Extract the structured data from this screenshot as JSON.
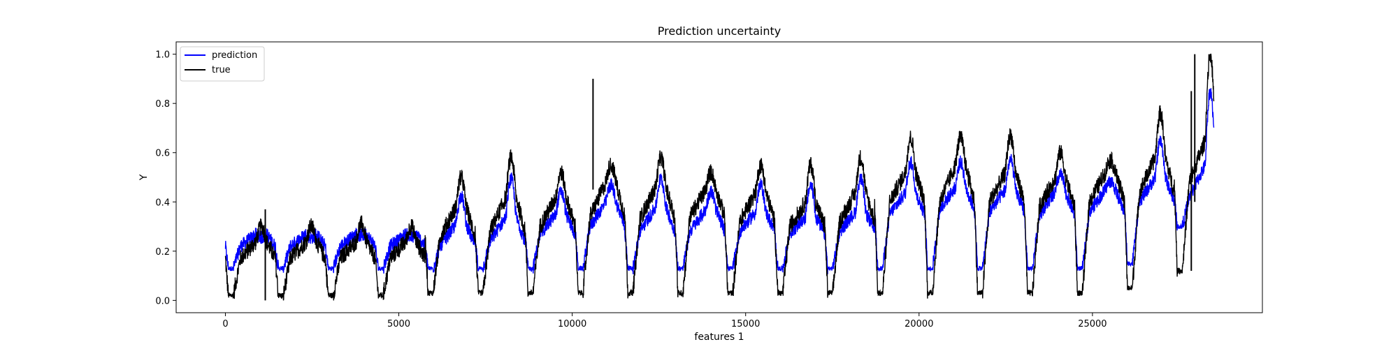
{
  "chart_data": {
    "type": "line",
    "title": "Prediction uncertainty",
    "xlabel": "features 1",
    "ylabel": "Y",
    "xlim": [
      -1420,
      29900
    ],
    "ylim": [
      -0.05,
      1.05
    ],
    "xticks": [
      0,
      5000,
      10000,
      15000,
      20000,
      25000
    ],
    "xtick_labels": [
      "0",
      "5000",
      "10000",
      "15000",
      "20000",
      "25000"
    ],
    "yticks": [
      0.0,
      0.2,
      0.4,
      0.6,
      0.8,
      1.0
    ],
    "ytick_labels": [
      "0.0",
      "0.2",
      "0.4",
      "0.6",
      "0.8",
      "1.0"
    ],
    "grid": false,
    "legend": {
      "placement": "top-left",
      "entries": [
        "prediction",
        "true"
      ]
    },
    "colors": {
      "prediction": "#0000ff",
      "true": "#000000"
    },
    "x_range": [
      0,
      28500
    ],
    "period": 1440,
    "cycles": [
      {
        "start": 0,
        "plateau_true": [
          0.17,
          0.24
        ],
        "plateau_pred": [
          0.22,
          0.27
        ],
        "peak_true": 0.3,
        "min_true": 0.02,
        "min_pred": 0.13
      },
      {
        "start": 1440,
        "plateau_true": [
          0.17,
          0.24
        ],
        "plateau_pred": [
          0.22,
          0.27
        ],
        "peak_true": 0.3,
        "min_true": 0.02,
        "min_pred": 0.13
      },
      {
        "start": 2880,
        "plateau_true": [
          0.17,
          0.24
        ],
        "plateau_pred": [
          0.22,
          0.27
        ],
        "peak_true": 0.31,
        "min_true": 0.02,
        "min_pred": 0.13
      },
      {
        "start": 4320,
        "plateau_true": [
          0.17,
          0.24
        ],
        "plateau_pred": [
          0.22,
          0.27
        ],
        "peak_true": 0.3,
        "min_true": 0.02,
        "min_pred": 0.13
      },
      {
        "start": 5760,
        "plateau_true": [
          0.26,
          0.38
        ],
        "plateau_pred": [
          0.22,
          0.31
        ],
        "peak_true": 0.5,
        "min_true": 0.03,
        "min_pred": 0.13
      },
      {
        "start": 7200,
        "plateau_true": [
          0.28,
          0.42
        ],
        "plateau_pred": [
          0.24,
          0.34
        ],
        "peak_true": 0.58,
        "min_true": 0.03,
        "min_pred": 0.13
      },
      {
        "start": 8640,
        "plateau_true": [
          0.3,
          0.42
        ],
        "plateau_pred": [
          0.27,
          0.35
        ],
        "peak_true": 0.52,
        "min_true": 0.03,
        "min_pred": 0.13
      },
      {
        "start": 10080,
        "plateau_true": [
          0.34,
          0.48
        ],
        "plateau_pred": [
          0.3,
          0.4
        ],
        "peak_true": 0.55,
        "min_true": 0.03,
        "min_pred": 0.13
      },
      {
        "start": 11520,
        "plateau_true": [
          0.33,
          0.46
        ],
        "plateau_pred": [
          0.28,
          0.38
        ],
        "peak_true": 0.58,
        "min_true": 0.03,
        "min_pred": 0.13
      },
      {
        "start": 12960,
        "plateau_true": [
          0.34,
          0.45
        ],
        "plateau_pred": [
          0.28,
          0.37
        ],
        "peak_true": 0.52,
        "min_true": 0.03,
        "min_pred": 0.13
      },
      {
        "start": 14400,
        "plateau_true": [
          0.32,
          0.44
        ],
        "plateau_pred": [
          0.28,
          0.36
        ],
        "peak_true": 0.55,
        "min_true": 0.03,
        "min_pred": 0.13
      },
      {
        "start": 15840,
        "plateau_true": [
          0.3,
          0.4
        ],
        "plateau_pred": [
          0.27,
          0.34
        ],
        "peak_true": 0.55,
        "min_true": 0.03,
        "min_pred": 0.13
      },
      {
        "start": 17280,
        "plateau_true": [
          0.32,
          0.44
        ],
        "plateau_pred": [
          0.28,
          0.36
        ],
        "peak_true": 0.58,
        "min_true": 0.03,
        "min_pred": 0.13
      },
      {
        "start": 18720,
        "plateau_true": [
          0.4,
          0.52
        ],
        "plateau_pred": [
          0.35,
          0.44
        ],
        "peak_true": 0.66,
        "min_true": 0.03,
        "min_pred": 0.13
      },
      {
        "start": 20160,
        "plateau_true": [
          0.4,
          0.55
        ],
        "plateau_pred": [
          0.37,
          0.46
        ],
        "peak_true": 0.66,
        "min_true": 0.03,
        "min_pred": 0.13
      },
      {
        "start": 21600,
        "plateau_true": [
          0.4,
          0.52
        ],
        "plateau_pred": [
          0.36,
          0.45
        ],
        "peak_true": 0.67,
        "min_true": 0.03,
        "min_pred": 0.13
      },
      {
        "start": 23040,
        "plateau_true": [
          0.38,
          0.5
        ],
        "plateau_pred": [
          0.35,
          0.44
        ],
        "peak_true": 0.6,
        "min_true": 0.03,
        "min_pred": 0.13
      },
      {
        "start": 24480,
        "plateau_true": [
          0.4,
          0.52
        ],
        "plateau_pred": [
          0.36,
          0.45
        ],
        "peak_true": 0.57,
        "min_true": 0.03,
        "min_pred": 0.13
      },
      {
        "start": 25920,
        "plateau_true": [
          0.44,
          0.58
        ],
        "plateau_pred": [
          0.4,
          0.5
        ],
        "peak_true": 0.76,
        "min_true": 0.05,
        "min_pred": 0.15
      },
      {
        "start": 27360,
        "plateau_true": [
          0.48,
          0.65
        ],
        "plateau_pred": [
          0.42,
          0.55
        ],
        "peak_true": 1.0,
        "min_true": 0.12,
        "min_pred": 0.3
      }
    ],
    "spikes": [
      {
        "x": 1150,
        "y_low": 0.0,
        "y_high": 0.37,
        "series": "true"
      },
      {
        "x": 10600,
        "y_low": 0.45,
        "y_high": 0.9,
        "series": "true"
      },
      {
        "x": 27850,
        "y_low": 0.12,
        "y_high": 0.85,
        "series": "true"
      },
      {
        "x": 27950,
        "y_low": 0.4,
        "y_high": 1.0,
        "series": "true"
      }
    ]
  }
}
